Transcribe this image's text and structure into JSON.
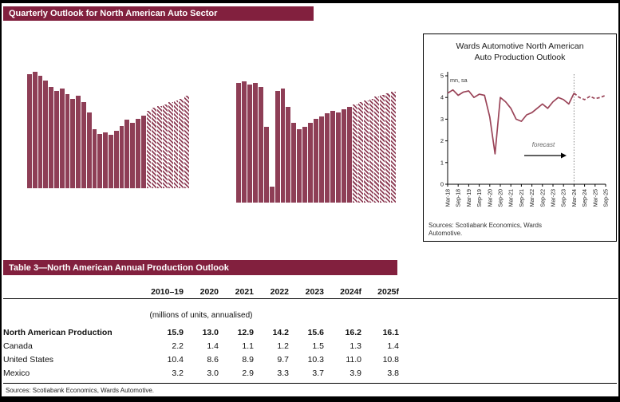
{
  "page": {
    "header_title": "Quarterly Outlook for North American Auto Sector"
  },
  "panel": {
    "title_line1": "Wards Automotive North American",
    "title_line2": "Auto Production Outlook",
    "sources": "Sources: Scotiabank Economics, Wards Automotive."
  },
  "table": {
    "title": "Table 3—North American Annual Production Outlook",
    "columns": [
      "2010–19",
      "2020",
      "2021",
      "2022",
      "2023",
      "2024f",
      "2025f"
    ],
    "units_note": "(millions of units, annualised)",
    "rows": [
      {
        "label": "North American Production",
        "bold": true,
        "values": [
          "15.9",
          "13.0",
          "12.9",
          "14.2",
          "15.6",
          "16.2",
          "16.1"
        ]
      },
      {
        "label": "Canada",
        "bold": false,
        "values": [
          "2.2",
          "1.4",
          "1.1",
          "1.2",
          "1.5",
          "1.3",
          "1.4"
        ]
      },
      {
        "label": "United States",
        "bold": false,
        "values": [
          "10.4",
          "8.6",
          "8.9",
          "9.7",
          "10.3",
          "11.0",
          "10.8"
        ]
      },
      {
        "label": "Mexico",
        "bold": false,
        "values": [
          "3.2",
          "3.0",
          "2.9",
          "3.3",
          "3.7",
          "3.9",
          "3.8"
        ]
      }
    ],
    "sources": "Sources: Scotiabank Economics, Wards Automotive."
  },
  "colors": {
    "maroon": "#82203e",
    "bar": "#8e3e56",
    "line": "#9a4458"
  },
  "chart_data": [
    {
      "id": "bar-left",
      "type": "bar",
      "title": "",
      "values": [
        17.5,
        17.7,
        17.4,
        17.1,
        16.7,
        16.4,
        16.6,
        16.2,
        15.9,
        16.1,
        15.7,
        15.0,
        13.9,
        13.6,
        13.7,
        13.5,
        13.8,
        14.1,
        14.5,
        14.3,
        14.6,
        14.8,
        15.1,
        15.3,
        15.4,
        15.5,
        15.7,
        15.8,
        15.9,
        16.1
      ],
      "forecast_start_index": 22,
      "ylim": [
        10,
        18
      ],
      "note": "quarterly bars, axis labels cropped out of screenshot; hatched bars = forecast"
    },
    {
      "id": "bar-right",
      "type": "bar",
      "title": "",
      "values": [
        16.2,
        16.5,
        16.0,
        16.2,
        15.7,
        10.3,
        2.2,
        15.2,
        15.5,
        13.0,
        10.8,
        10.0,
        10.3,
        10.8,
        11.4,
        11.7,
        12.1,
        12.5,
        12.2,
        12.7,
        13.0,
        13.3,
        13.6,
        13.9,
        14.1,
        14.4,
        14.6,
        14.8,
        15.1
      ],
      "forecast_start_index": 21,
      "ylim": [
        0,
        17
      ],
      "note": "quarterly bars, axis labels cropped out of screenshot; hatched bars = forecast"
    },
    {
      "id": "wards-line",
      "type": "line",
      "title": "Wards Automotive North American Auto Production Outlook",
      "ylabel": "mn, sa",
      "ylim": [
        0,
        5
      ],
      "yticks": [
        0,
        1,
        2,
        3,
        4,
        5
      ],
      "x_tick_labels": [
        "Mar-18",
        "Sep-18",
        "Mar-19",
        "Sep-19",
        "Mar-20",
        "Sep-20",
        "Mar-21",
        "Sep-21",
        "Mar-22",
        "Sep-22",
        "Mar-23",
        "Sep-23",
        "Mar-24",
        "Sep-24",
        "Mar-25",
        "Sep-25"
      ],
      "values": [
        4.2,
        4.35,
        4.1,
        4.25,
        4.3,
        4.0,
        4.15,
        4.1,
        3.1,
        1.4,
        4.0,
        3.8,
        3.5,
        3.0,
        2.9,
        3.2,
        3.3,
        3.5,
        3.7,
        3.5,
        3.8,
        4.0,
        3.9,
        3.7,
        4.2,
        4.0,
        3.9,
        4.05,
        3.95,
        4.0,
        4.1
      ],
      "forecast_start_index": 24,
      "annotation": "forecast",
      "legend": null
    }
  ]
}
